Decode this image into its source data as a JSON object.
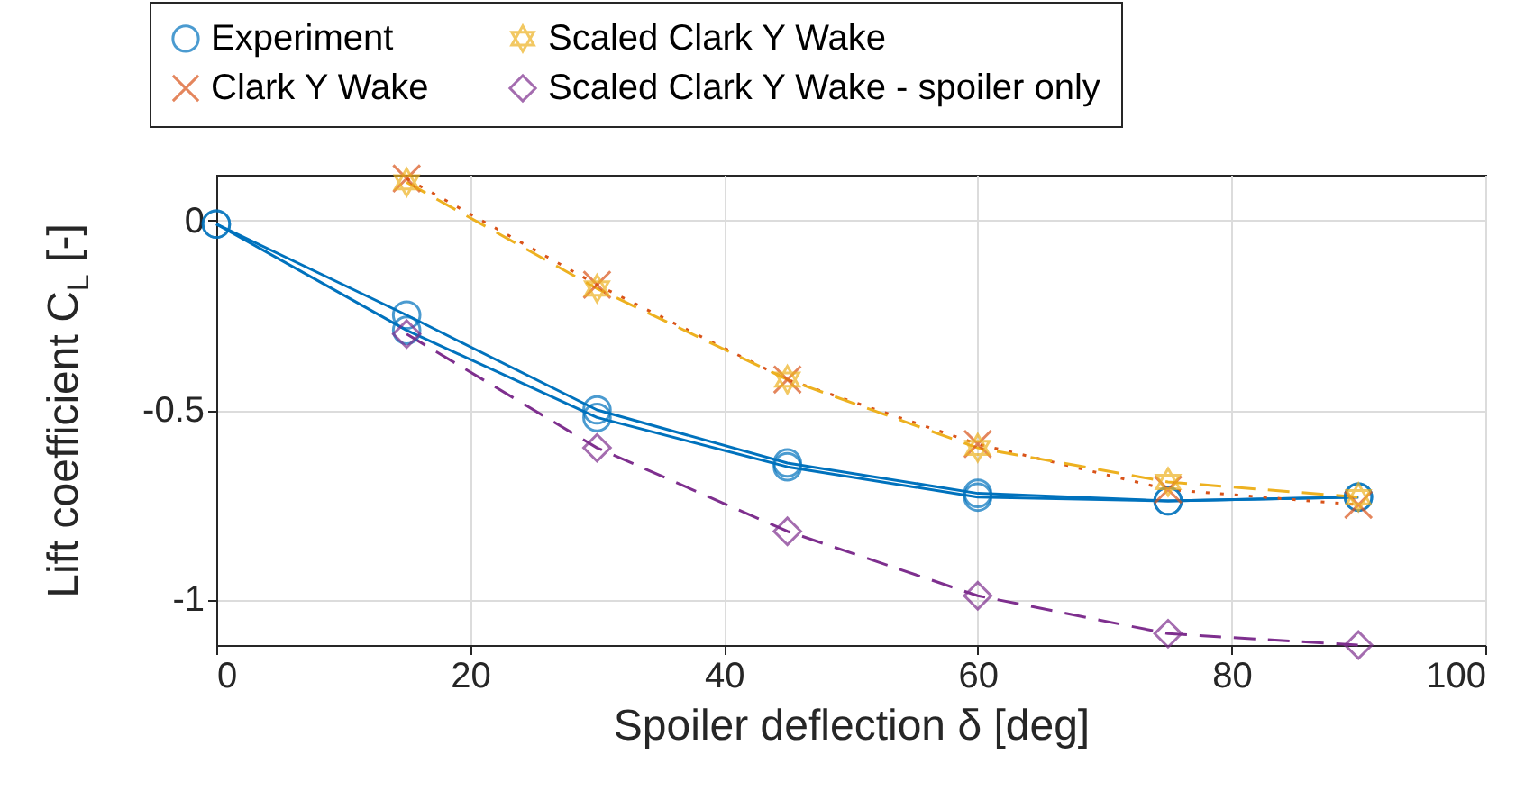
{
  "chart_data": {
    "type": "line",
    "xlabel": "Spoiler deflection δ [deg]",
    "ylabel": "Lift coefficient C$_{L}$ [-]",
    "xlim": [
      0,
      100
    ],
    "xticks": [
      0,
      20,
      40,
      60,
      80,
      100
    ],
    "ylim": [
      -1.12,
      0.12
    ],
    "yticks": [
      -1,
      -0.5,
      0
    ],
    "grid": true,
    "legend": "top",
    "series": [
      {
        "name": "Experiment",
        "color": "#0072bd",
        "marker": "circle",
        "line_style": "solid",
        "x": [
          0,
          15,
          30,
          45,
          60,
          75,
          90
        ],
        "values": [
          -0.01,
          -0.25,
          -0.5,
          -0.64,
          -0.72,
          -0.74,
          -0.73
        ]
      },
      {
        "color": "#0072bd",
        "marker": "circle",
        "line_style": "solid",
        "x": [
          0,
          15,
          30,
          45,
          60,
          75,
          90
        ],
        "values": [
          -0.01,
          -0.29,
          -0.52,
          -0.65,
          -0.73,
          -0.74,
          -0.73
        ]
      },
      {
        "name": "Clark Y Wake",
        "color": "#d95319",
        "marker": "cross",
        "line_style": "dotted",
        "x": [
          15,
          30,
          45,
          60,
          75,
          90
        ],
        "values": [
          0.11,
          -0.17,
          -0.42,
          -0.59,
          -0.71,
          -0.75
        ]
      },
      {
        "name": "Scaled Clark Y Wake",
        "color": "#edb120",
        "marker": "star",
        "line_style": "dashed",
        "x": [
          15,
          30,
          45,
          60,
          75,
          90
        ],
        "values": [
          0.1,
          -0.18,
          -0.42,
          -0.6,
          -0.69,
          -0.73
        ]
      },
      {
        "name": "Scaled Clark Y Wake - spoiler only",
        "color": "#7e2f8e",
        "marker": "diamond",
        "line_style": "dashed",
        "x": [
          15,
          30,
          45,
          60,
          75,
          90
        ],
        "values": [
          -0.3,
          -0.6,
          -0.82,
          -0.99,
          -1.09,
          -1.12
        ]
      }
    ]
  }
}
